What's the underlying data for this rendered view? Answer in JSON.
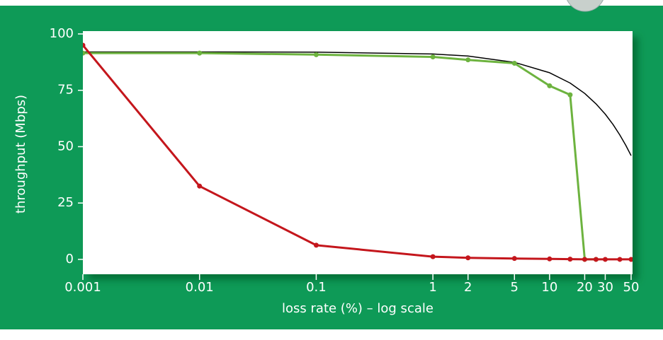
{
  "chart_data": {
    "type": "line",
    "x_label": "loss rate (%) – log scale",
    "y_label": "throughput (Mbps)",
    "x_log": true,
    "xlim": [
      0.001,
      50
    ],
    "xticks": [
      0.001,
      0.01,
      0.1,
      1,
      2,
      5,
      10,
      20,
      30,
      50
    ],
    "ylim": [
      -6.6,
      100
    ],
    "yticks": [
      0,
      25,
      50,
      75,
      100
    ],
    "series": [
      {
        "color": "#000000",
        "markers": false,
        "x": [
          0.001,
          0.01,
          0.1,
          1,
          2,
          5,
          10,
          15,
          20,
          25,
          30,
          35,
          40,
          45,
          50
        ],
        "values": [
          92,
          92,
          91.9,
          91.1,
          90.2,
          87.4,
          82.8,
          78.2,
          73.6,
          69,
          64.4,
          59.8,
          55.2,
          50.6,
          46
        ]
      },
      {
        "color": "#6db33f",
        "markers": true,
        "x": [
          0.001,
          0.01,
          0.1,
          1,
          2,
          5,
          10,
          15,
          20,
          25
        ],
        "values": [
          91.5,
          91.5,
          90.8,
          89.8,
          88.5,
          87,
          77,
          73,
          0,
          0
        ]
      },
      {
        "color": "#c4161c",
        "markers": true,
        "x": [
          0.001,
          0.01,
          0.1,
          1,
          2,
          5,
          10,
          15,
          20,
          25,
          30,
          40,
          50
        ],
        "values": [
          95,
          32.5,
          6.3,
          1.2,
          0.7,
          0.4,
          0.2,
          0.1,
          0,
          0,
          0,
          0,
          0
        ]
      }
    ]
  }
}
